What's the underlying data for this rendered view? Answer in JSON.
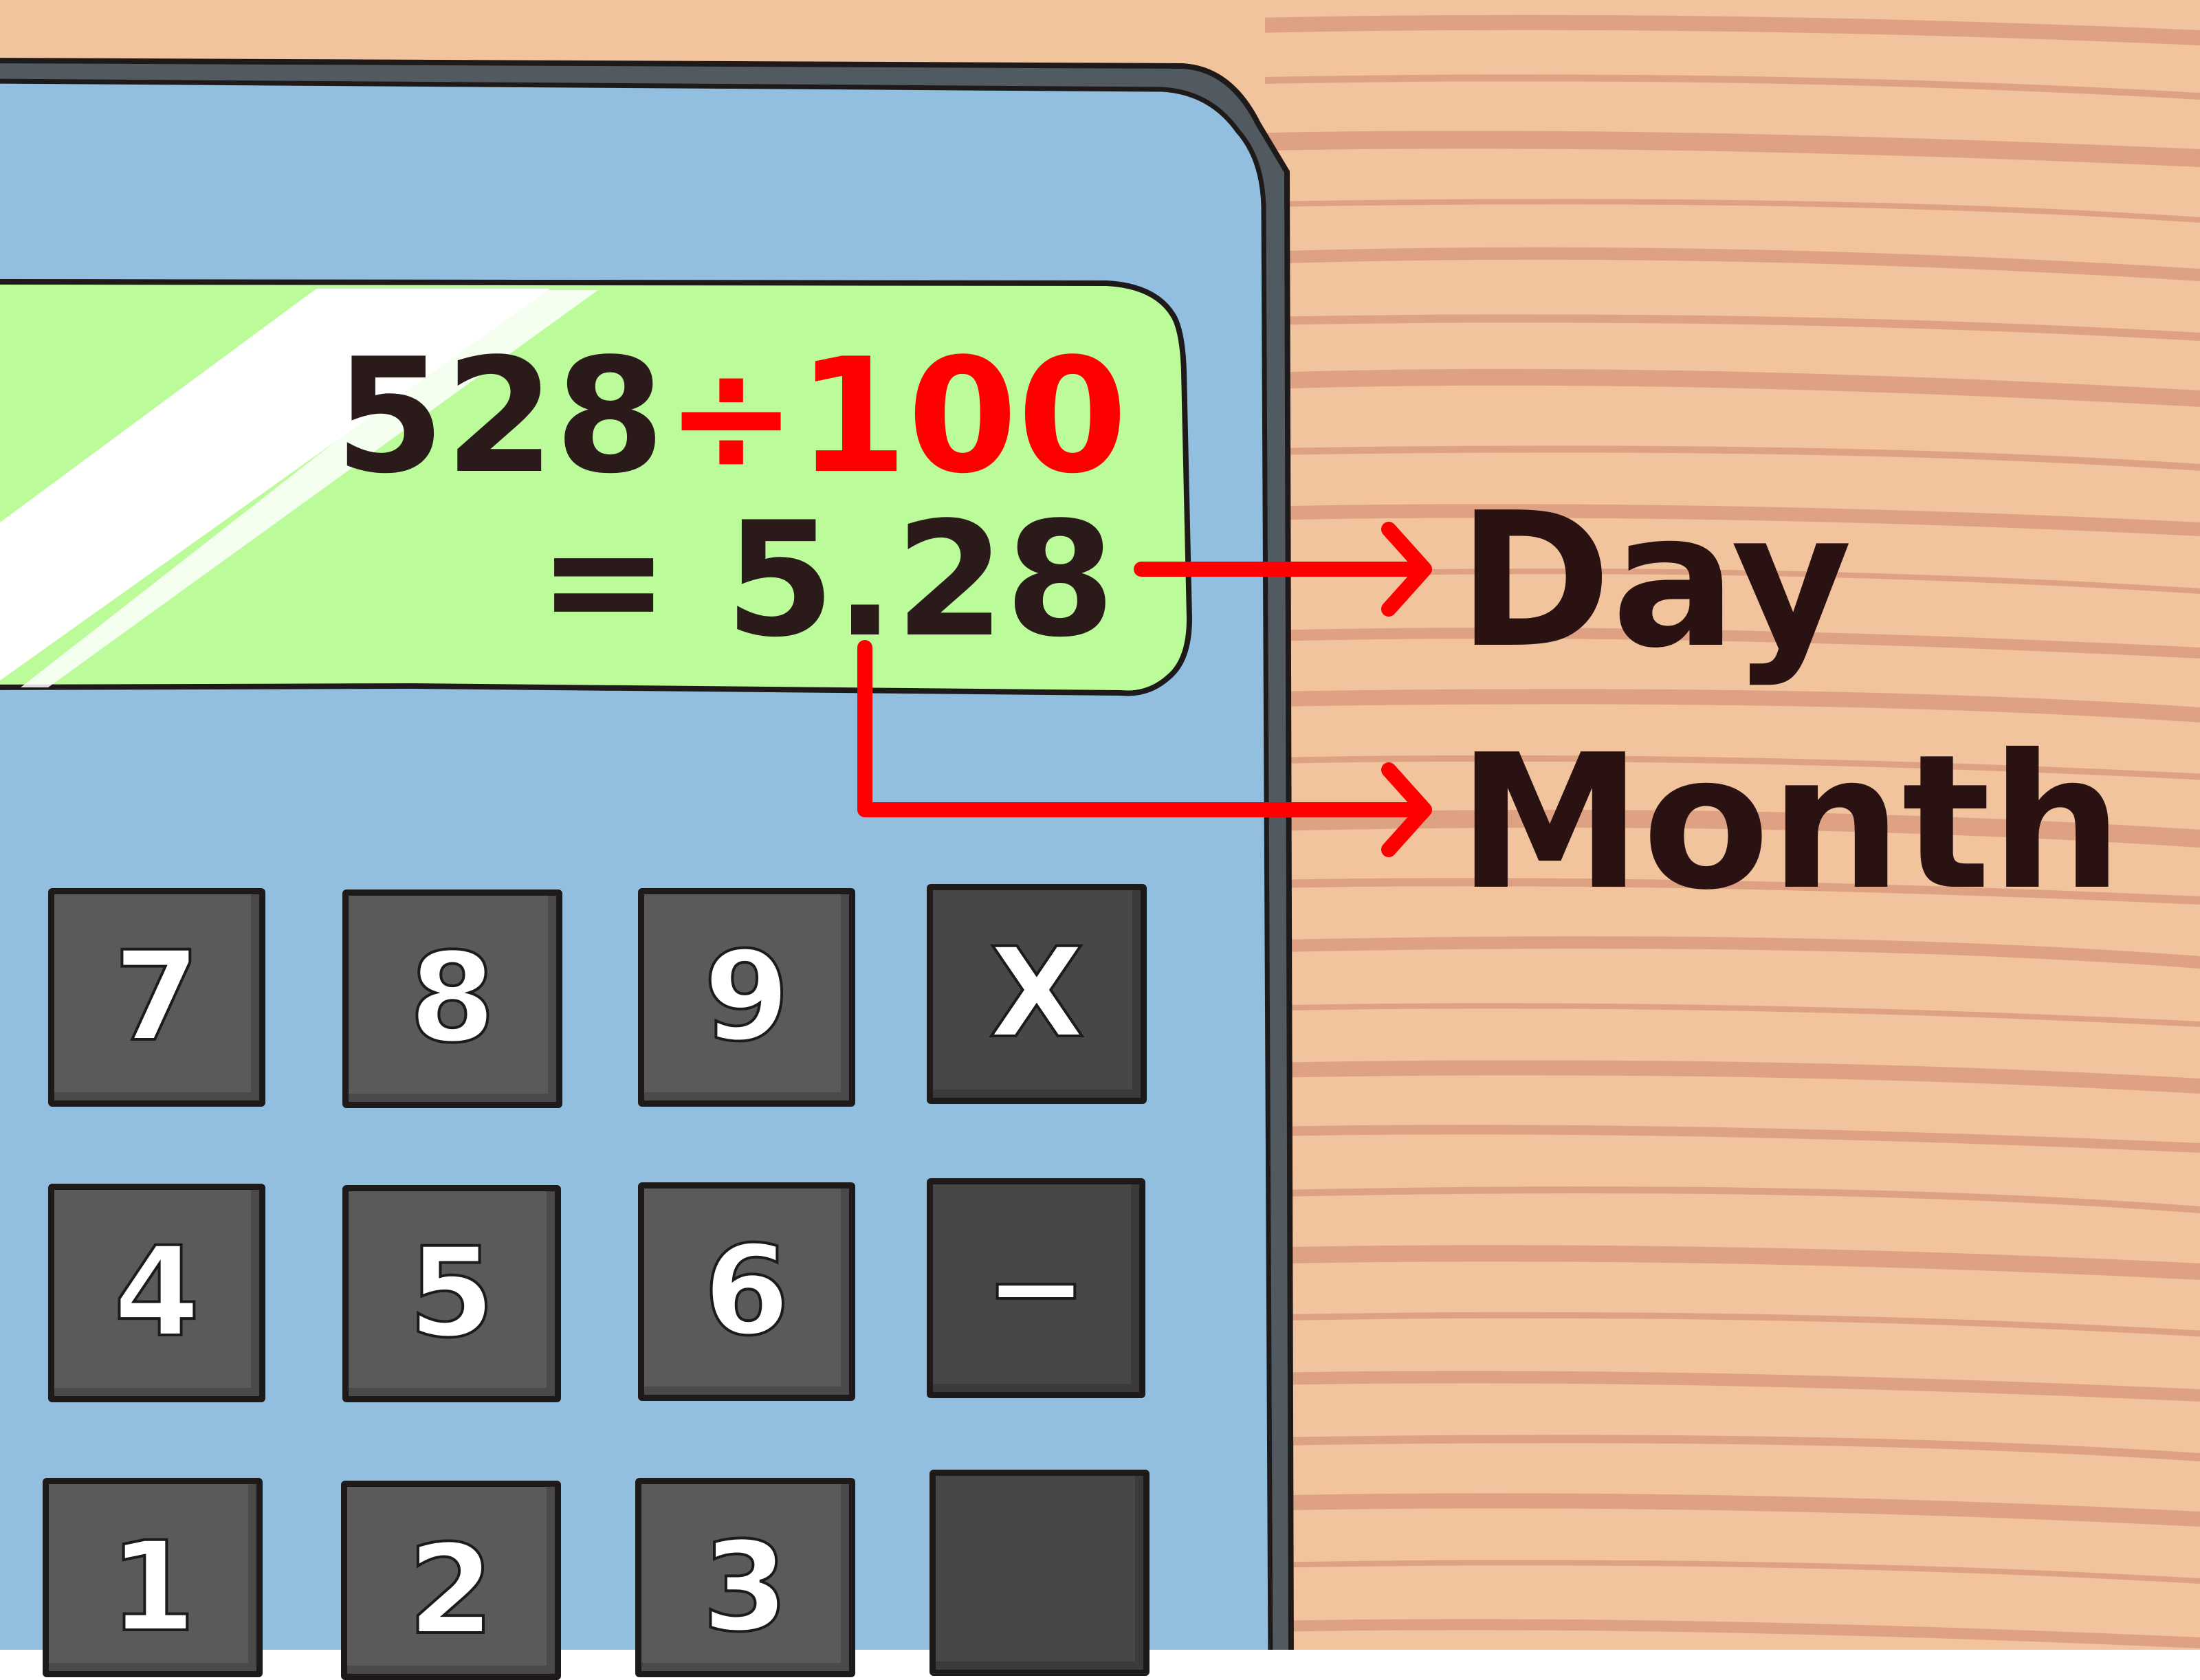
{
  "display": {
    "expression_dividend": "528",
    "expression_operator": "÷",
    "expression_divisor": "100",
    "result_equals": "=",
    "result_value": "5.28"
  },
  "outputs": {
    "day": "Day",
    "month": "Month"
  },
  "keypad": {
    "rows": [
      [
        "7",
        "8",
        "9",
        "X"
      ],
      [
        "4",
        "5",
        "6",
        "−"
      ],
      [
        "1",
        "2",
        "3",
        ""
      ]
    ]
  },
  "colors": {
    "table_wood": "#f1c49e",
    "wood_grain": "#dea184",
    "calculator_body": "#92bfe0",
    "screen": "#bbfb9a",
    "key": "#5a5a5a",
    "key_dark": "#474747",
    "highlight_red": "#ff0000",
    "outline": "#1e1a1a"
  }
}
